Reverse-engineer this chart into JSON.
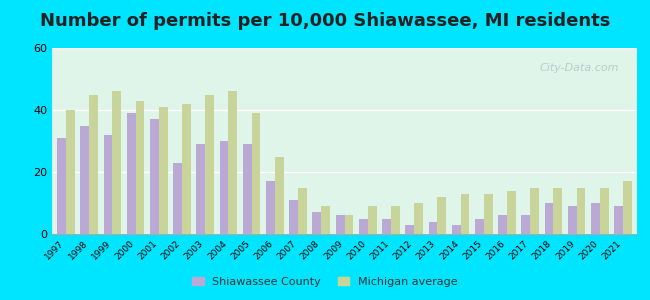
{
  "title": "Number of permits per 10,000 Shiawassee, MI residents",
  "years": [
    1997,
    1998,
    1999,
    2000,
    2001,
    2002,
    2003,
    2004,
    2005,
    2006,
    2007,
    2008,
    2009,
    2010,
    2011,
    2012,
    2013,
    2014,
    2015,
    2016,
    2017,
    2018,
    2019,
    2020,
    2021
  ],
  "shiawassee": [
    31,
    35,
    32,
    39,
    37,
    23,
    29,
    30,
    29,
    17,
    11,
    7,
    6,
    5,
    5,
    3,
    4,
    3,
    5,
    6,
    6,
    10,
    9,
    10,
    9
  ],
  "michigan": [
    40,
    45,
    46,
    43,
    41,
    42,
    45,
    46,
    39,
    25,
    15,
    9,
    6,
    9,
    9,
    10,
    12,
    13,
    13,
    14,
    15,
    15,
    15,
    15,
    17
  ],
  "shiawassee_color": "#b9a9d4",
  "michigan_color": "#c8d49a",
  "background_color": "#e0f5e9",
  "outer_background": "#00e5ff",
  "ylim": [
    0,
    60
  ],
  "yticks": [
    0,
    20,
    40,
    60
  ],
  "legend_shiawassee": "Shiawassee County",
  "legend_michigan": "Michigan average",
  "title_fontsize": 13,
  "watermark": "City-Data.com"
}
